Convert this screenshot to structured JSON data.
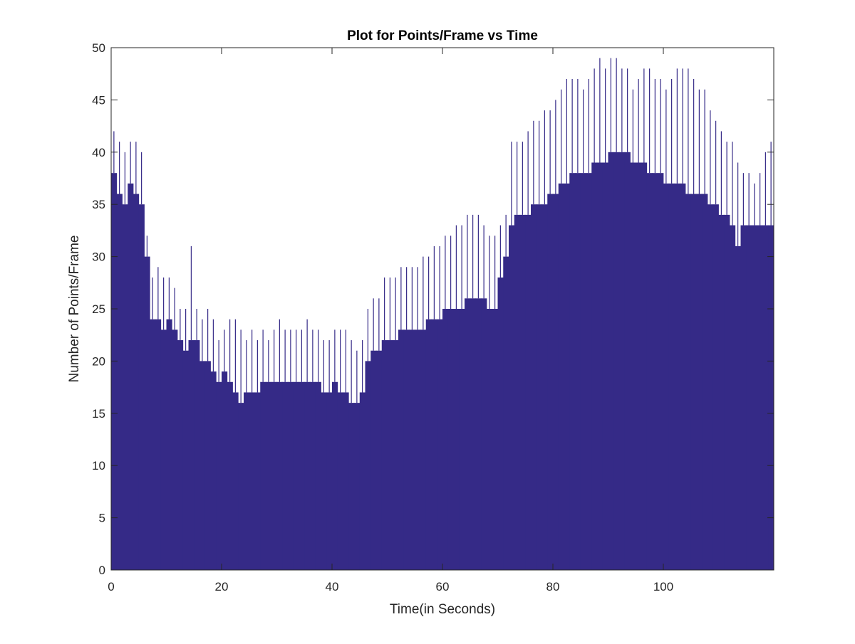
{
  "chart_data": {
    "type": "bar",
    "title": "Plot for Points/Frame vs Time",
    "xlabel": "Time(in Seconds)",
    "ylabel": "Number of Points/Frame",
    "xlim": [
      0,
      120
    ],
    "ylim": [
      0,
      50
    ],
    "x_ticks": [
      0,
      20,
      40,
      60,
      80,
      100
    ],
    "y_ticks": [
      0,
      5,
      10,
      15,
      20,
      25,
      30,
      35,
      40,
      45,
      50
    ],
    "grid": false,
    "legend": "none",
    "bar_color": "#352a87",
    "series": [
      {
        "x": [
          0,
          1,
          2,
          3,
          4,
          5,
          6,
          7,
          8,
          9,
          10,
          11,
          12,
          13,
          14,
          15,
          16,
          17,
          18,
          19,
          20,
          21,
          22,
          23,
          24,
          25,
          26,
          27,
          28,
          29,
          30,
          31,
          32,
          33,
          34,
          35,
          36,
          37,
          38,
          39,
          40,
          41,
          42,
          43,
          44,
          45,
          46,
          47,
          48,
          49,
          50,
          51,
          52,
          53,
          54,
          55,
          56,
          57,
          58,
          59,
          60,
          61,
          62,
          63,
          64,
          65,
          66,
          67,
          68,
          69,
          70,
          71,
          72,
          73,
          74,
          75,
          76,
          77,
          78,
          79,
          80,
          81,
          82,
          83,
          84,
          85,
          86,
          87,
          88,
          89,
          90,
          91,
          92,
          93,
          94,
          95,
          96,
          97,
          98,
          99,
          100,
          101,
          102,
          103,
          104,
          105,
          106,
          107,
          108,
          109,
          110,
          111,
          112,
          113,
          114,
          115,
          116,
          117,
          118,
          119
        ],
        "values": [
          38,
          36,
          35,
          37,
          36,
          35,
          30,
          24,
          24,
          23,
          24,
          23,
          22,
          21,
          22,
          22,
          20,
          20,
          19,
          18,
          19,
          18,
          17,
          16,
          17,
          17,
          17,
          18,
          18,
          18,
          18,
          18,
          18,
          18,
          18,
          18,
          18,
          18,
          17,
          17,
          18,
          17,
          17,
          16,
          16,
          17,
          20,
          21,
          21,
          22,
          22,
          22,
          23,
          23,
          23,
          23,
          23,
          24,
          24,
          24,
          25,
          25,
          25,
          25,
          26,
          26,
          26,
          26,
          25,
          25,
          28,
          30,
          33,
          34,
          34,
          34,
          35,
          35,
          35,
          36,
          36,
          37,
          37,
          38,
          38,
          38,
          38,
          39,
          39,
          39,
          40,
          40,
          40,
          40,
          39,
          39,
          39,
          38,
          38,
          38,
          37,
          37,
          37,
          37,
          36,
          36,
          36,
          36,
          35,
          35,
          34,
          34,
          33,
          31,
          33,
          33,
          33,
          33,
          33,
          33
        ],
        "max_values": [
          42,
          41,
          40,
          41,
          41,
          40,
          32,
          28,
          29,
          28,
          28,
          27,
          25,
          25,
          31,
          25,
          24,
          25,
          24,
          22,
          23,
          24,
          24,
          23,
          22,
          23,
          22,
          23,
          22,
          23,
          24,
          23,
          23,
          23,
          23,
          24,
          23,
          23,
          22,
          22,
          23,
          23,
          23,
          22,
          21,
          22,
          25,
          26,
          26,
          28,
          28,
          28,
          29,
          29,
          29,
          29,
          30,
          30,
          31,
          31,
          32,
          32,
          33,
          33,
          34,
          34,
          34,
          33,
          32,
          32,
          33,
          34,
          41,
          41,
          41,
          42,
          43,
          43,
          44,
          44,
          45,
          46,
          47,
          47,
          47,
          46,
          47,
          48,
          49,
          48,
          49,
          49,
          48,
          48,
          46,
          47,
          48,
          48,
          47,
          47,
          46,
          47,
          48,
          48,
          48,
          47,
          46,
          46,
          44,
          43,
          42,
          41,
          41,
          39,
          38,
          38,
          37,
          38,
          40,
          41
        ]
      }
    ]
  }
}
